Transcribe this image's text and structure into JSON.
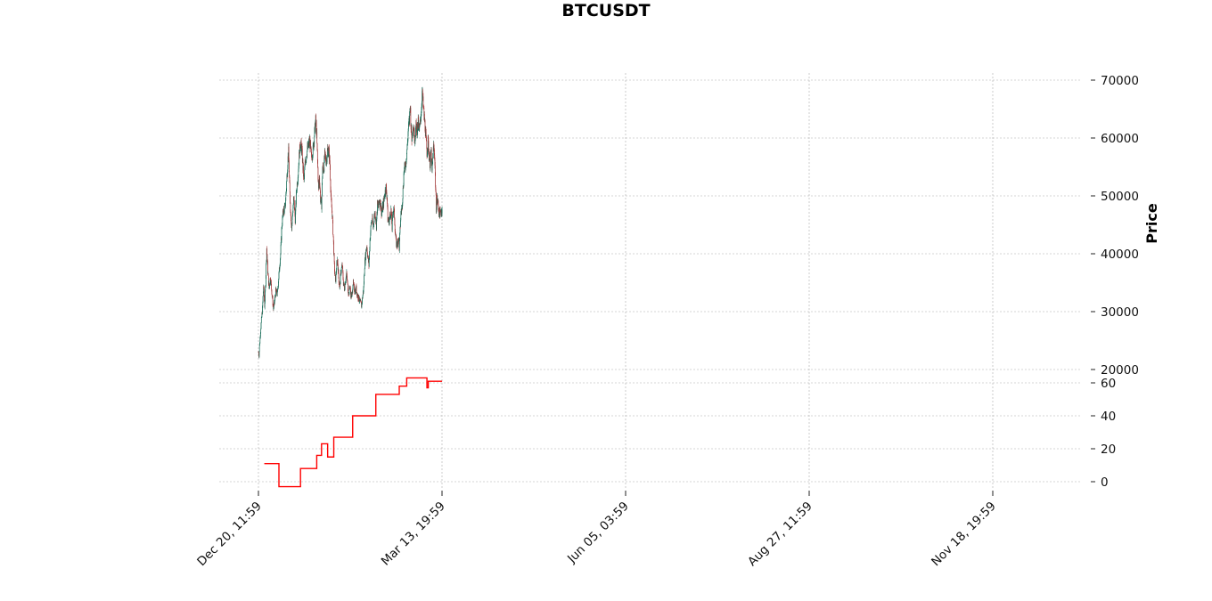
{
  "colors": {
    "up": "#1a6e5a",
    "down": "#a33a3a",
    "indicator": "#ff0000",
    "grid": "#aaaaaa"
  },
  "chart_data": {
    "type": "candlestick",
    "title": "BTCUSDT",
    "ylabel": "Price",
    "x_ticks": [
      "Dec 20, 11:59",
      "Mar 13, 19:59",
      "Jun 05, 03:59",
      "Aug 27, 11:59",
      "Nov 18, 19:59"
    ],
    "price_panel": {
      "ylim": [
        20000,
        70000
      ],
      "yticks": [
        "20000",
        "30000",
        "40000",
        "50000",
        "60000",
        "70000"
      ],
      "trend": [
        [
          0,
          23000
        ],
        [
          2,
          22500
        ],
        [
          6,
          25500
        ],
        [
          11,
          28500
        ],
        [
          15,
          30500
        ],
        [
          19,
          34500
        ],
        [
          23,
          31000
        ],
        [
          27,
          35000
        ],
        [
          31,
          41000
        ],
        [
          35,
          37000
        ],
        [
          40,
          34000
        ],
        [
          45,
          36000
        ],
        [
          51,
          33000
        ],
        [
          56,
          30500
        ],
        [
          60,
          31500
        ],
        [
          65,
          33500
        ],
        [
          71,
          33000
        ],
        [
          77,
          36500
        ],
        [
          83,
          40000
        ],
        [
          88,
          45000
        ],
        [
          94,
          47500
        ],
        [
          100,
          48000
        ],
        [
          105,
          51500
        ],
        [
          110,
          56000
        ],
        [
          113,
          57500
        ],
        [
          117,
          51500
        ],
        [
          121,
          47000
        ],
        [
          125,
          44500
        ],
        [
          129,
          47500
        ],
        [
          133,
          49500
        ],
        [
          138,
          46000
        ],
        [
          143,
          51000
        ],
        [
          149,
          54000
        ],
        [
          154,
          57500
        ],
        [
          158,
          59000
        ],
        [
          163,
          58000
        ],
        [
          167,
          55000
        ],
        [
          171,
          52500
        ],
        [
          175,
          55500
        ],
        [
          181,
          57500
        ],
        [
          187,
          58500
        ],
        [
          193,
          59500
        ],
        [
          199,
          56500
        ],
        [
          205,
          58000
        ],
        [
          211,
          61000
        ],
        [
          215,
          63000
        ],
        [
          218,
          61500
        ],
        [
          222,
          56000
        ],
        [
          226,
          51000
        ],
        [
          229,
          53500
        ],
        [
          233,
          49500
        ],
        [
          237,
          48500
        ],
        [
          241,
          55000
        ],
        [
          245,
          54500
        ],
        [
          249,
          57000
        ],
        [
          255,
          56000
        ],
        [
          260,
          58000
        ],
        [
          265,
          57500
        ],
        [
          269,
          55000
        ],
        [
          273,
          49000
        ],
        [
          277,
          47000
        ],
        [
          281,
          43000
        ],
        [
          285,
          38000
        ],
        [
          289,
          35000
        ],
        [
          293,
          37500
        ],
        [
          297,
          39000
        ],
        [
          301,
          36000
        ],
        [
          305,
          34000
        ],
        [
          310,
          37000
        ],
        [
          315,
          38000
        ],
        [
          319,
          35000
        ],
        [
          323,
          34000
        ],
        [
          327,
          35500
        ],
        [
          331,
          36500
        ],
        [
          335,
          34500
        ],
        [
          339,
          33000
        ],
        [
          343,
          34500
        ],
        [
          347,
          33000
        ],
        [
          351,
          32500
        ],
        [
          355,
          35000
        ],
        [
          359,
          34000
        ],
        [
          363,
          33500
        ],
        [
          367,
          34000
        ],
        [
          371,
          33000
        ],
        [
          375,
          32500
        ],
        [
          379,
          32000
        ],
        [
          383,
          31500
        ],
        [
          387,
          31000
        ],
        [
          391,
          32500
        ],
        [
          395,
          34000
        ],
        [
          399,
          38000
        ],
        [
          403,
          40000
        ],
        [
          407,
          41500
        ],
        [
          411,
          39500
        ],
        [
          415,
          38000
        ],
        [
          419,
          42500
        ],
        [
          423,
          45000
        ],
        [
          427,
          46000
        ],
        [
          431,
          44500
        ],
        [
          435,
          46500
        ],
        [
          439,
          47000
        ],
        [
          443,
          45000
        ],
        [
          447,
          48500
        ],
        [
          451,
          48000
        ],
        [
          455,
          49500
        ],
        [
          459,
          48500
        ],
        [
          463,
          47000
        ],
        [
          467,
          48000
        ],
        [
          471,
          49000
        ],
        [
          475,
          50500
        ],
        [
          479,
          51500
        ],
        [
          483,
          50000
        ],
        [
          486,
          46000
        ],
        [
          490,
          45500
        ],
        [
          494,
          46500
        ],
        [
          498,
          47500
        ],
        [
          502,
          44500
        ],
        [
          505,
          47000
        ],
        [
          508,
          48000
        ],
        [
          511,
          46500
        ],
        [
          514,
          43500
        ],
        [
          517,
          42000
        ],
        [
          520,
          41500
        ],
        [
          523,
          42000
        ],
        [
          526,
          43000
        ],
        [
          529,
          41000
        ],
        [
          532,
          44000
        ],
        [
          535,
          47000
        ],
        [
          539,
          48000
        ],
        [
          543,
          51000
        ],
        [
          547,
          54500
        ],
        [
          551,
          55000
        ],
        [
          555,
          56500
        ],
        [
          559,
          58500
        ],
        [
          563,
          61500
        ],
        [
          567,
          63000
        ],
        [
          570,
          66000
        ],
        [
          573,
          62000
        ],
        [
          576,
          60000
        ],
        [
          580,
          62500
        ],
        [
          584,
          61000
        ],
        [
          588,
          60000
        ],
        [
          592,
          62000
        ],
        [
          596,
          61500
        ],
        [
          600,
          62500
        ],
        [
          604,
          61000
        ],
        [
          608,
          63000
        ],
        [
          612,
          65000
        ],
        [
          615,
          68000
        ],
        [
          619,
          65500
        ],
        [
          623,
          63500
        ],
        [
          626,
          62000
        ],
        [
          629,
          60000
        ],
        [
          633,
          57500
        ],
        [
          637,
          59500
        ],
        [
          641,
          57000
        ],
        [
          645,
          55500
        ],
        [
          649,
          57500
        ],
        [
          652,
          54000
        ],
        [
          655,
          56500
        ],
        [
          658,
          58500
        ],
        [
          662,
          57000
        ],
        [
          665,
          52000
        ],
        [
          668,
          48000
        ],
        [
          671,
          49500
        ],
        [
          675,
          48500
        ],
        [
          679,
          47000
        ],
        [
          683,
          47000
        ],
        [
          688,
          47500
        ],
        [
          690,
          48000
        ]
      ]
    },
    "indicator_panel": {
      "ylim": [
        0,
        60
      ],
      "yticks": [
        "0",
        "20",
        "40",
        "60"
      ],
      "steps": [
        [
          22,
          11
        ],
        [
          77,
          -3
        ],
        [
          158,
          8
        ],
        [
          219,
          16
        ],
        [
          237,
          23
        ],
        [
          260,
          15
        ],
        [
          283,
          27
        ],
        [
          354,
          40
        ],
        [
          441,
          53
        ],
        [
          529,
          58
        ],
        [
          557,
          63
        ],
        [
          633,
          57
        ],
        [
          638,
          61
        ],
        [
          690,
          61
        ]
      ]
    }
  }
}
